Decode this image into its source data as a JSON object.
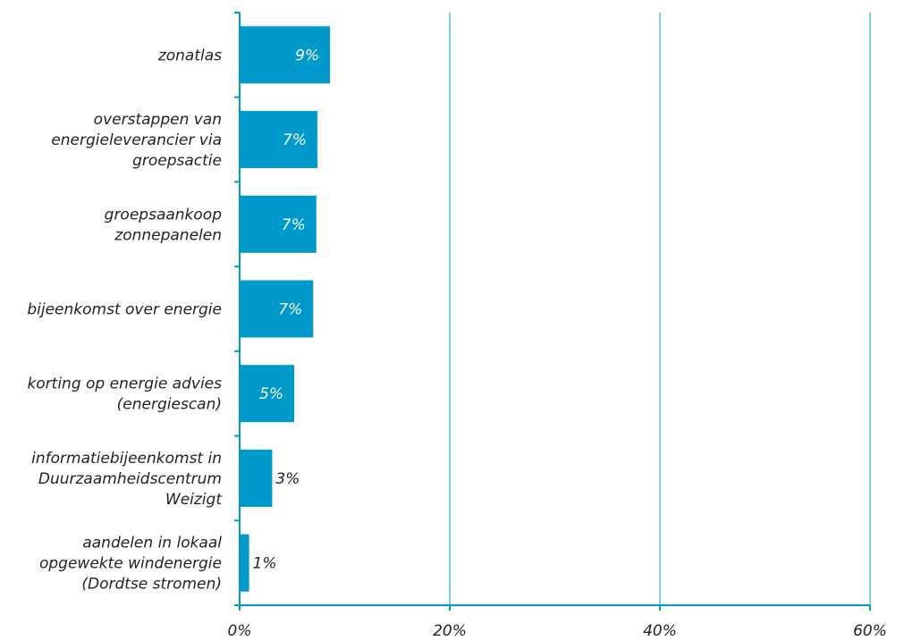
{
  "chart_data": {
    "type": "bar",
    "orientation": "horizontal",
    "categories": [
      [
        "zonatlas"
      ],
      [
        "overstappen van",
        "energieleverancier via",
        "groepsactie"
      ],
      [
        "groepsaankoop",
        "zonnepanelen"
      ],
      [
        "bijeenkomst over energie"
      ],
      [
        "korting op energie advies",
        "(energiescan)"
      ],
      [
        "informatiebijeenkomst in",
        "Duurzaamheidscentrum",
        "Weizigt"
      ],
      [
        "aandelen in lokaal",
        "opgewekte windenergie",
        "(Dordtse stromen)"
      ]
    ],
    "values": [
      8.6,
      7.4,
      7.3,
      7.0,
      5.2,
      3.1,
      0.9
    ],
    "labels": [
      "9%",
      "7%",
      "7%",
      "7%",
      "5%",
      "3%",
      "1%"
    ],
    "xlim": [
      0,
      60
    ],
    "xticks": [
      0,
      20,
      40,
      60
    ],
    "xtick_labels": [
      "0%",
      "20%",
      "40%",
      "60%"
    ],
    "grid": "vertical",
    "bar_color": "#0099cc",
    "label_color_inside": "#ffffff",
    "label_color_outside": "#222222"
  }
}
